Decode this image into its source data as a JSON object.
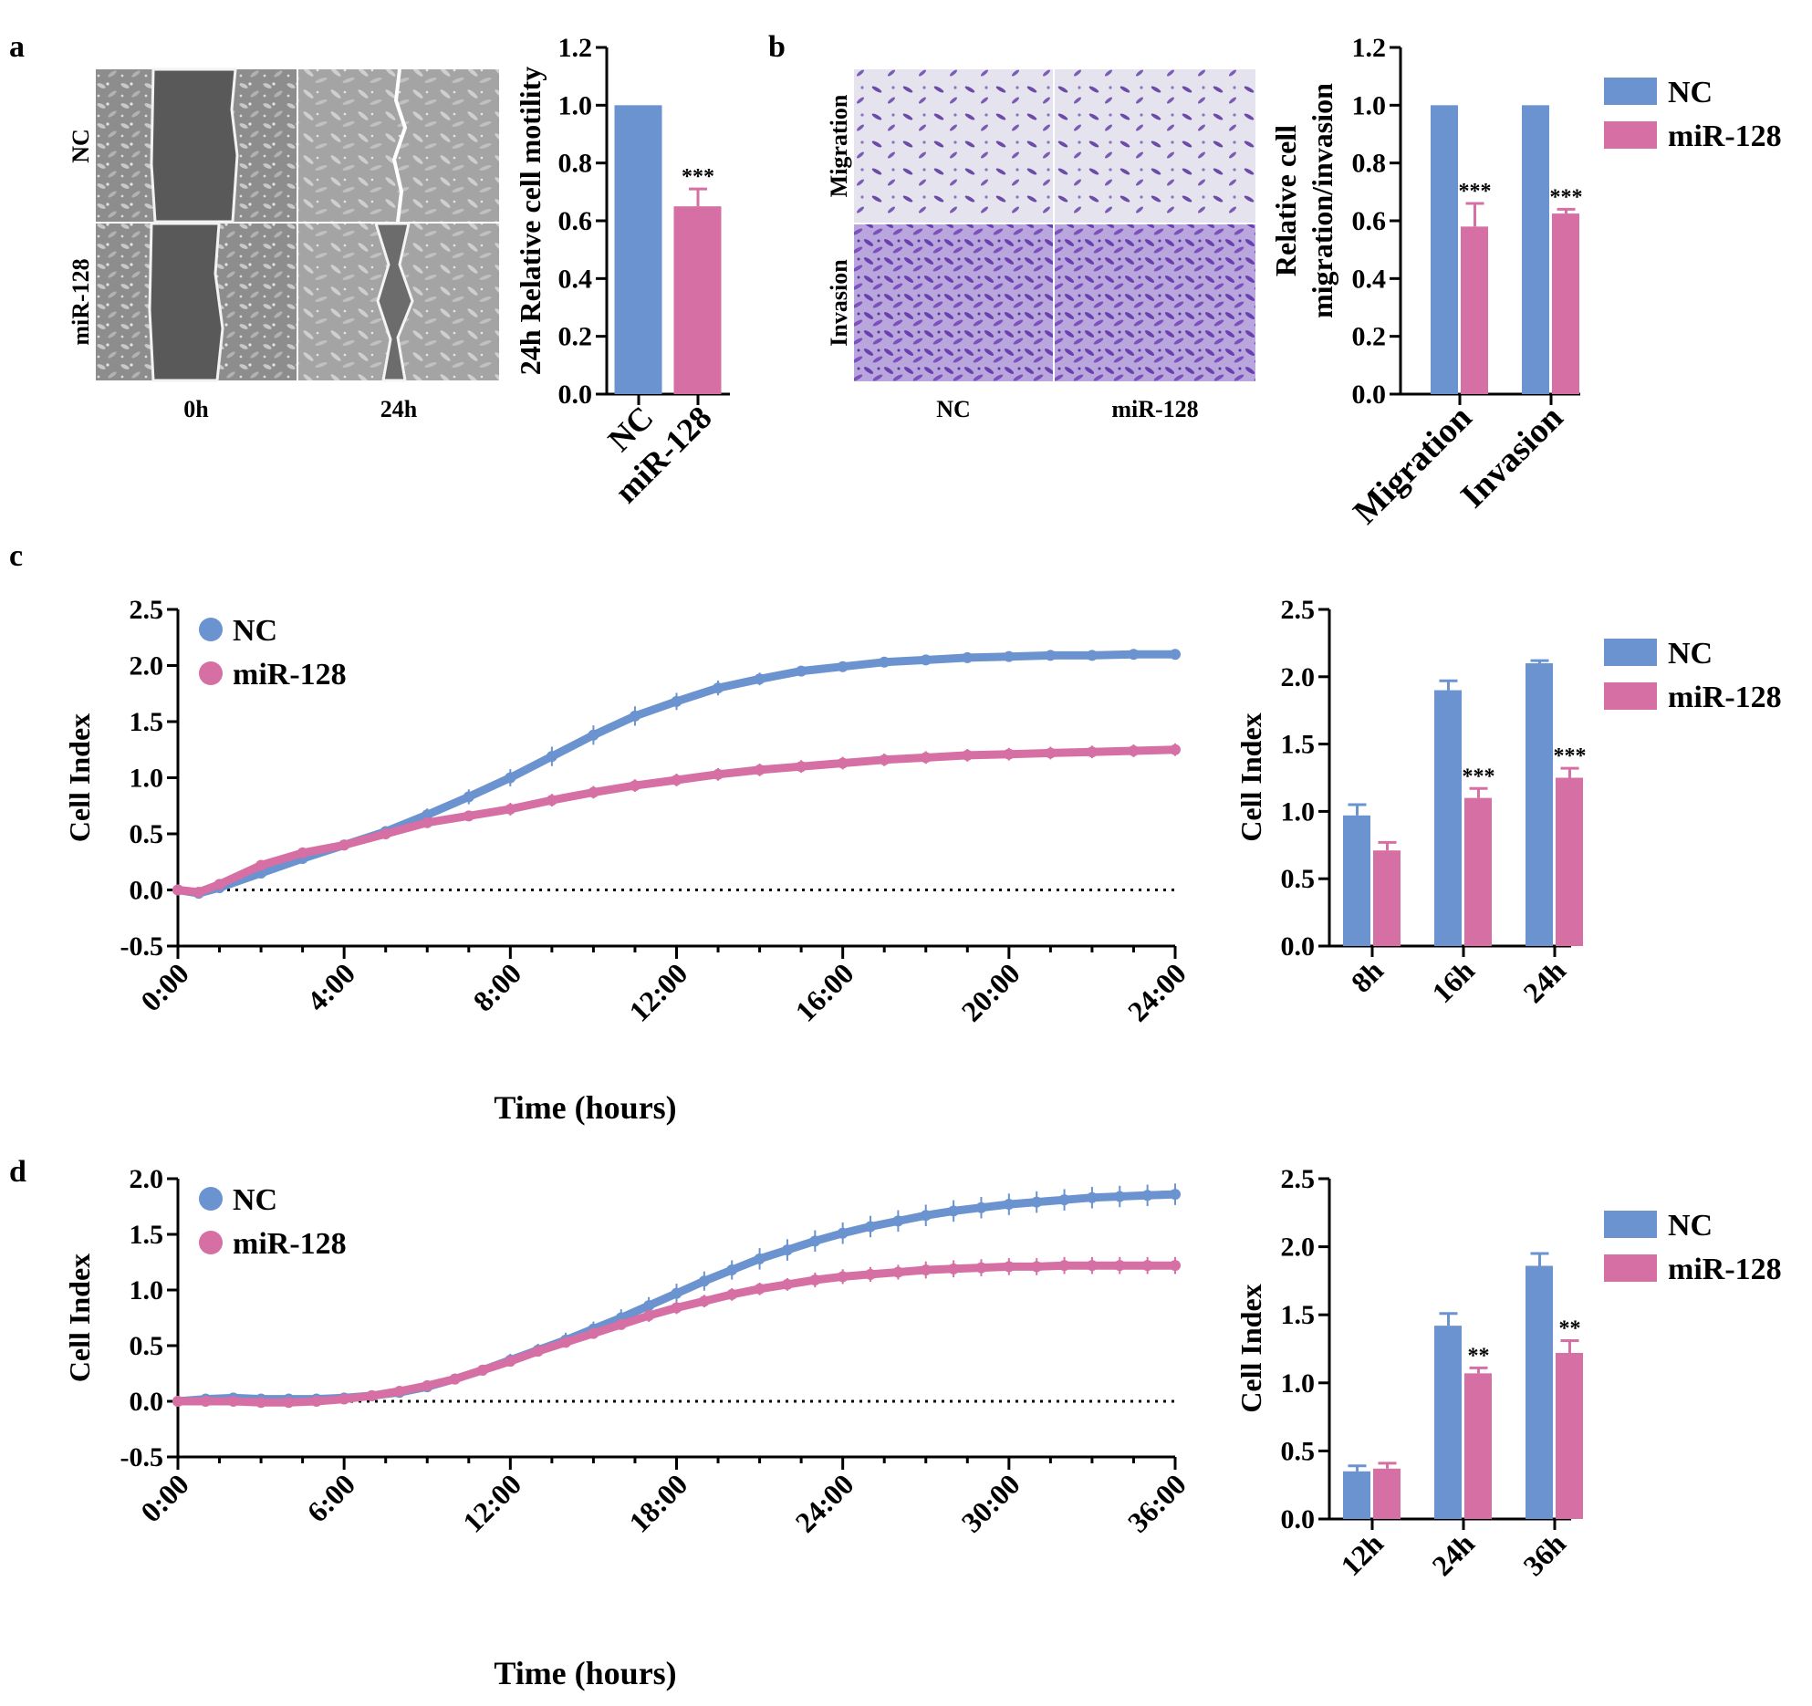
{
  "colors": {
    "nc": "#6a93d0",
    "mir": "#d66fa4",
    "axis": "#000000"
  },
  "legend": {
    "nc": "NC",
    "mir": "miR-128"
  },
  "panels": {
    "a": {
      "label": "a",
      "rows": [
        "NC",
        "miR-128"
      ],
      "cols": [
        "0h",
        "24h"
      ],
      "chart_data": {
        "type": "bar",
        "title": "",
        "ylabel": "24h Relative cell motility",
        "xlabel": "",
        "categories": [
          "NC",
          "miR-128"
        ],
        "values": [
          1.0,
          0.65
        ],
        "errors": [
          0,
          0.06
        ],
        "ylim": [
          0,
          1.2
        ],
        "yticks": [
          "0.0",
          "0.2",
          "0.4",
          "0.6",
          "0.8",
          "1.0",
          "1.2"
        ],
        "sig": [
          "",
          "***"
        ]
      }
    },
    "b": {
      "label": "b",
      "rows": [
        "Migration",
        "Invasion"
      ],
      "cols": [
        "NC",
        "miR-128"
      ],
      "chart_data": {
        "type": "bar",
        "title": "",
        "ylabel_lines": [
          "Relative cell",
          "migration/invasion"
        ],
        "xlabel": "",
        "categories": [
          "Migration",
          "Invasion"
        ],
        "series": [
          {
            "name": "NC",
            "values": [
              1.0,
              1.0
            ],
            "errors": [
              0,
              0
            ]
          },
          {
            "name": "miR-128",
            "values": [
              0.58,
              0.625
            ],
            "errors": [
              0.08,
              0.015
            ]
          }
        ],
        "ylim": [
          0,
          1.2
        ],
        "yticks": [
          "0.0",
          "0.2",
          "0.4",
          "0.6",
          "0.8",
          "1.0",
          "1.2"
        ],
        "sig": [
          "***",
          "***"
        ]
      }
    },
    "c": {
      "label": "c",
      "line": {
        "type": "line",
        "xlabel": "Time (hours)",
        "ylabel": "Cell Index",
        "xlim": [
          0,
          24
        ],
        "ylim": [
          -0.5,
          2.5
        ],
        "xticks": [
          "0:00",
          "4:00",
          "8:00",
          "12:00",
          "16:00",
          "20:00",
          "24:00"
        ],
        "yticks": [
          "-0.5",
          "0.0",
          "0.5",
          "1.0",
          "1.5",
          "2.0",
          "2.5"
        ],
        "series": [
          {
            "name": "NC",
            "x": [
              0,
              0.5,
              1,
              2,
              3,
              4,
              5,
              6,
              7,
              8,
              9,
              10,
              11,
              12,
              13,
              14,
              15,
              16,
              17,
              18,
              19,
              20,
              21,
              22,
              23,
              24
            ],
            "y": [
              0,
              -0.03,
              0.02,
              0.15,
              0.28,
              0.4,
              0.52,
              0.67,
              0.83,
              1.0,
              1.19,
              1.38,
              1.55,
              1.68,
              1.8,
              1.88,
              1.95,
              1.99,
              2.03,
              2.05,
              2.07,
              2.08,
              2.09,
              2.09,
              2.1,
              2.1
            ],
            "err": [
              0.01,
              0.01,
              0.01,
              0.02,
              0.03,
              0.03,
              0.03,
              0.04,
              0.05,
              0.06,
              0.07,
              0.07,
              0.07,
              0.06,
              0.05,
              0.04,
              0.03,
              0.03,
              0.02,
              0.02,
              0.02,
              0.02,
              0.02,
              0.02,
              0.02,
              0.02
            ]
          },
          {
            "name": "miR-128",
            "x": [
              0,
              0.5,
              1,
              2,
              3,
              4,
              5,
              6,
              7,
              8,
              9,
              10,
              11,
              12,
              13,
              14,
              15,
              16,
              17,
              18,
              19,
              20,
              21,
              22,
              23,
              24
            ],
            "y": [
              0,
              -0.02,
              0.05,
              0.22,
              0.33,
              0.4,
              0.5,
              0.6,
              0.66,
              0.72,
              0.8,
              0.87,
              0.93,
              0.98,
              1.03,
              1.07,
              1.1,
              1.13,
              1.16,
              1.18,
              1.2,
              1.21,
              1.22,
              1.23,
              1.24,
              1.25
            ],
            "err": [
              0.01,
              0.01,
              0.01,
              0.02,
              0.02,
              0.02,
              0.03,
              0.03,
              0.03,
              0.04,
              0.04,
              0.04,
              0.04,
              0.04,
              0.04,
              0.04,
              0.04,
              0.04,
              0.04,
              0.04,
              0.04,
              0.04,
              0.04,
              0.04,
              0.04,
              0.04
            ]
          }
        ]
      },
      "bars": {
        "type": "bar",
        "ylabel": "Cell Index",
        "categories": [
          "8h",
          "16h",
          "24h"
        ],
        "series": [
          {
            "name": "NC",
            "values": [
              0.97,
              1.9,
              2.1
            ],
            "errors": [
              0.08,
              0.07,
              0.02
            ]
          },
          {
            "name": "miR-128",
            "values": [
              0.71,
              1.1,
              1.25
            ],
            "errors": [
              0.06,
              0.07,
              0.07
            ]
          }
        ],
        "ylim": [
          0,
          2.5
        ],
        "yticks": [
          "0.0",
          "0.5",
          "1.0",
          "1.5",
          "2.0",
          "2.5"
        ],
        "sig": [
          "",
          "***",
          "***"
        ]
      }
    },
    "d": {
      "label": "d",
      "line": {
        "type": "line",
        "xlabel": "Time (hours)",
        "ylabel": "Cell Index",
        "xlim": [
          0,
          36
        ],
        "ylim": [
          -0.5,
          2.0
        ],
        "xticks": [
          "0:00",
          "6:00",
          "12:00",
          "18:00",
          "24:00",
          "30:00",
          "36:00"
        ],
        "yticks": [
          "-0.5",
          "0.0",
          "0.5",
          "1.0",
          "1.5",
          "2.0"
        ],
        "series": [
          {
            "name": "NC",
            "x": [
              0,
              1,
              2,
              3,
              4,
              5,
              6,
              7,
              8,
              9,
              10,
              11,
              12,
              13,
              14,
              15,
              16,
              17,
              18,
              19,
              20,
              21,
              22,
              23,
              24,
              25,
              26,
              27,
              28,
              29,
              30,
              31,
              32,
              33,
              34,
              35,
              36
            ],
            "y": [
              0,
              0.02,
              0.03,
              0.02,
              0.02,
              0.02,
              0.03,
              0.05,
              0.08,
              0.13,
              0.2,
              0.28,
              0.37,
              0.46,
              0.55,
              0.65,
              0.75,
              0.86,
              0.97,
              1.08,
              1.18,
              1.28,
              1.36,
              1.44,
              1.51,
              1.57,
              1.62,
              1.67,
              1.71,
              1.74,
              1.77,
              1.79,
              1.81,
              1.83,
              1.84,
              1.85,
              1.86
            ],
            "err": [
              0.01,
              0.01,
              0.01,
              0.01,
              0.01,
              0.01,
              0.01,
              0.01,
              0.02,
              0.02,
              0.03,
              0.03,
              0.04,
              0.04,
              0.05,
              0.05,
              0.06,
              0.06,
              0.07,
              0.07,
              0.07,
              0.08,
              0.08,
              0.08,
              0.08,
              0.08,
              0.08,
              0.08,
              0.08,
              0.08,
              0.08,
              0.08,
              0.08,
              0.08,
              0.08,
              0.08,
              0.08
            ]
          },
          {
            "name": "miR-128",
            "x": [
              0,
              1,
              2,
              3,
              4,
              5,
              6,
              7,
              8,
              9,
              10,
              11,
              12,
              13,
              14,
              15,
              16,
              17,
              18,
              19,
              20,
              21,
              22,
              23,
              24,
              25,
              26,
              27,
              28,
              29,
              30,
              31,
              32,
              33,
              34,
              35,
              36
            ],
            "y": [
              0,
              0.0,
              0.0,
              -0.01,
              -0.01,
              0.0,
              0.02,
              0.05,
              0.09,
              0.14,
              0.2,
              0.28,
              0.36,
              0.45,
              0.53,
              0.61,
              0.69,
              0.77,
              0.84,
              0.9,
              0.96,
              1.01,
              1.05,
              1.09,
              1.12,
              1.14,
              1.16,
              1.18,
              1.19,
              1.2,
              1.21,
              1.21,
              1.22,
              1.22,
              1.22,
              1.22,
              1.22
            ],
            "err": [
              0.01,
              0.01,
              0.01,
              0.01,
              0.01,
              0.01,
              0.01,
              0.01,
              0.02,
              0.02,
              0.02,
              0.02,
              0.03,
              0.03,
              0.03,
              0.03,
              0.03,
              0.04,
              0.04,
              0.04,
              0.04,
              0.04,
              0.04,
              0.05,
              0.05,
              0.05,
              0.05,
              0.06,
              0.06,
              0.06,
              0.06,
              0.06,
              0.06,
              0.06,
              0.06,
              0.06,
              0.06
            ]
          }
        ]
      },
      "bars": {
        "type": "bar",
        "ylabel": "Cell Index",
        "categories": [
          "12h",
          "24h",
          "36h"
        ],
        "series": [
          {
            "name": "NC",
            "values": [
              0.35,
              1.42,
              1.86
            ],
            "errors": [
              0.04,
              0.09,
              0.09
            ]
          },
          {
            "name": "miR-128",
            "values": [
              0.37,
              1.07,
              1.22
            ],
            "errors": [
              0.04,
              0.04,
              0.09
            ]
          }
        ],
        "ylim": [
          0,
          2.5
        ],
        "yticks": [
          "0.0",
          "0.5",
          "1.0",
          "1.5",
          "2.0",
          "2.5"
        ],
        "sig": [
          "",
          "**",
          "**"
        ]
      }
    }
  }
}
